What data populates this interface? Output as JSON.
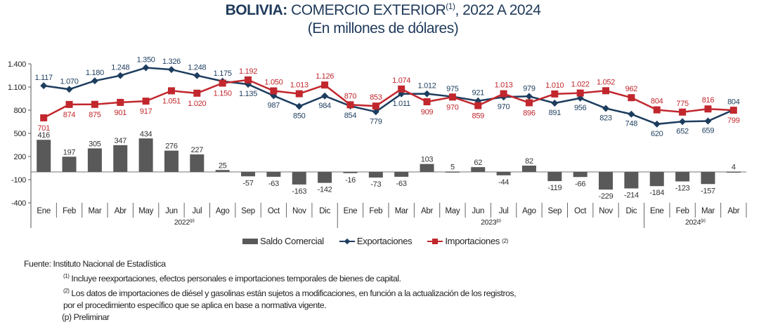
{
  "title": {
    "bold": "BOLIVIA:",
    "rest": " COMERCIO EXTERIOR",
    "sup": "(1)",
    "rest2": ", 2022 A 2024",
    "subtitle": "(En millones de dólares)"
  },
  "legend": {
    "bar": "Saldo Comercial",
    "exports": "Exportaciones",
    "imports": "Importaciones",
    "imports_sup": "(2)"
  },
  "footnotes": {
    "source": "Fuente: Instituto Nacional de Estadística",
    "n1_mark": "(1)",
    "n1": " Incluye reexportaciones, efectos personales e importaciones temporales de bienes de capital.",
    "n2_mark": "(2)",
    "n2": " Los datos de importaciones de diésel y gasolinas están sujetos a modificaciones, en función a la actualización de los registros,",
    "n2b": "por el procedimiento específico que se aplica en base a normativa vigente.",
    "p": "(p) Preliminar"
  },
  "colors": {
    "exports": "#1d3d5e",
    "imports": "#c1272d",
    "balance": "#595959"
  },
  "chart_data": {
    "type": "bar+line",
    "ylim": [
      -400,
      1400
    ],
    "yticks": [
      1400,
      1100,
      800,
      500,
      200,
      -100,
      -400
    ],
    "ytick_labels": [
      "1.400",
      "1.100",
      "800",
      "500",
      "200",
      "-100",
      "-400"
    ],
    "categories": [
      "Ene",
      "Feb",
      "Mar",
      "Abr",
      "May",
      "Jun",
      "Jul",
      "Ago",
      "Sep",
      "Oct",
      "Nov",
      "Dic",
      "Ene",
      "Feb",
      "Mar",
      "Abr",
      "May",
      "Jun",
      "Jul",
      "Ago",
      "Sep",
      "Oct",
      "Nov",
      "Dic",
      "Ene",
      "Feb",
      "Mar",
      "Abr"
    ],
    "years": [
      {
        "label": "2022",
        "sup": "(p)",
        "count": 12
      },
      {
        "label": "2023",
        "sup": "(p)",
        "count": 12
      },
      {
        "label": "2024",
        "sup": "(p)",
        "count": 4
      }
    ],
    "series": [
      {
        "name": "Saldo Comercial",
        "type": "bar",
        "values": [
          416,
          197,
          305,
          347,
          434,
          276,
          227,
          25,
          -57,
          -63,
          -163,
          -142,
          -16,
          -73,
          -63,
          103,
          5,
          62,
          -44,
          82,
          -119,
          -66,
          -229,
          -214,
          -184,
          -123,
          -157,
          4
        ]
      },
      {
        "name": "Exportaciones",
        "type": "line",
        "marker": "diamond",
        "values": [
          1117,
          1070,
          1180,
          1248,
          1350,
          1326,
          1248,
          1175,
          1135,
          987,
          850,
          984,
          854,
          779,
          1011,
          1012,
          975,
          921,
          970,
          979,
          891,
          956,
          823,
          748,
          620,
          652,
          659,
          804
        ]
      },
      {
        "name": "Importaciones",
        "type": "line",
        "marker": "square",
        "values": [
          701,
          874,
          875,
          901,
          917,
          1051,
          1020,
          1150,
          1192,
          1050,
          1013,
          1126,
          870,
          853,
          1074,
          909,
          970,
          859,
          1013,
          896,
          1010,
          1022,
          1052,
          962,
          804,
          775,
          816,
          799
        ]
      }
    ]
  }
}
